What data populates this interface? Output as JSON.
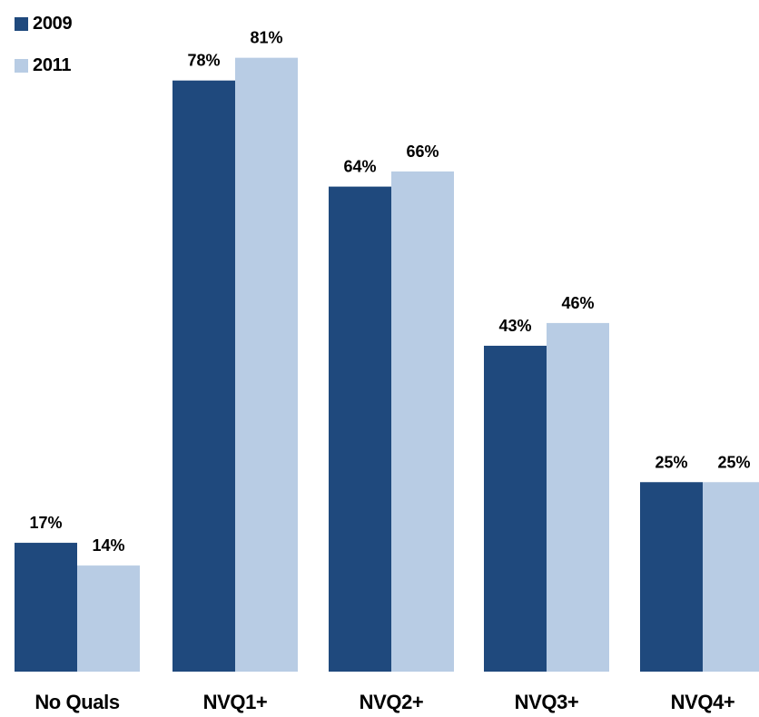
{
  "chart_data": {
    "type": "bar",
    "title": "",
    "xlabel": "",
    "ylabel": "",
    "categories": [
      "No Quals",
      "NVQ1+",
      "NVQ2+",
      "NVQ3+",
      "NVQ4+"
    ],
    "series": [
      {
        "name": "2009",
        "color": "#1f497d",
        "values": [
          17,
          78,
          64,
          43,
          25
        ],
        "labels": [
          "17%",
          "78%",
          "64%",
          "43%",
          "25%"
        ]
      },
      {
        "name": "2011",
        "color": "#b8cce4",
        "values": [
          14,
          81,
          66,
          46,
          25
        ],
        "labels": [
          "14%",
          "81%",
          "66%",
          "46%",
          "25%"
        ]
      }
    ],
    "value_unit": "%",
    "ylim": [
      0,
      100
    ],
    "grid": false,
    "y_axis_visible": false,
    "legend": {
      "placement": "top-left",
      "entries": [
        "2009",
        "2011"
      ]
    }
  }
}
